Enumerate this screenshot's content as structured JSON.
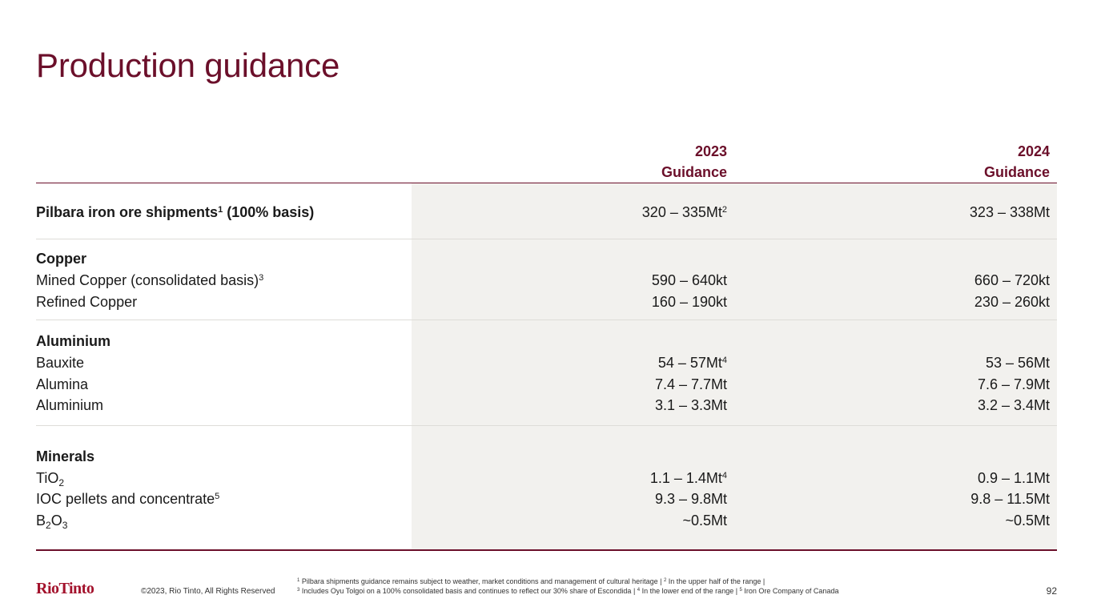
{
  "title": "Production guidance",
  "headers": {
    "col1_line1": "2023",
    "col1_line2": "Guidance",
    "col2_line1": "2024",
    "col2_line2": "Guidance"
  },
  "iron_ore": {
    "label": "Pilbara iron ore shipments",
    "label_sup": "1",
    "label_suffix": " (100% basis)",
    "v2023": "320 – 335Mt",
    "v2023_sup": "2",
    "v2024": "323 – 338Mt"
  },
  "copper": {
    "heading": "Copper",
    "mined_label": "Mined Copper (consolidated basis)",
    "mined_sup": "3",
    "mined_2023": "590 – 640kt",
    "mined_2024": "660 – 720kt",
    "refined_label": "Refined Copper",
    "refined_2023": "160 – 190kt",
    "refined_2024": "230 – 260kt"
  },
  "aluminium": {
    "heading": "Aluminium",
    "bauxite_label": "Bauxite",
    "bauxite_2023": "54 – 57Mt",
    "bauxite_2023_sup": "4",
    "bauxite_2024": "53 – 56Mt",
    "alumina_label": "Alumina",
    "alumina_2023": "7.4 – 7.7Mt",
    "alumina_2024": "7.6 – 7.9Mt",
    "aluminium_label": "Aluminium",
    "aluminium_2023": "3.1 – 3.3Mt",
    "aluminium_2024": "3.2 – 3.4Mt"
  },
  "minerals": {
    "heading": "Minerals",
    "tio2_label_main": "TiO",
    "tio2_label_sub": "2",
    "tio2_2023": "1.1 – 1.4Mt",
    "tio2_2023_sup": "4",
    "tio2_2024": "0.9 – 1.1Mt",
    "ioc_label": "IOC pellets and concentrate",
    "ioc_sup": "5",
    "ioc_2023": "9.3 – 9.8Mt",
    "ioc_2024": "9.8 – 11.5Mt",
    "b2o3_a": "B",
    "b2o3_sub1": "2",
    "b2o3_b": "O",
    "b2o3_sub2": "3",
    "b2o3_2023": "~0.5Mt",
    "b2o3_2024": "~0.5Mt"
  },
  "footer": {
    "logo": "RioTinto",
    "copyright": "©2023, Rio Tinto, All Rights Reserved",
    "fn1_sup": "1",
    "fn1": " Pilbara shipments guidance remains subject to weather, market conditions and management of cultural heritage | ",
    "fn2_sup": "2",
    "fn2": " In the upper half of the range |",
    "fn3_sup": "3",
    "fn3": " Includes Oyu Tolgoi on a 100% consolidated basis and continues to reflect our 30% share of Escondida | ",
    "fn4_sup": "4",
    "fn4": " In the lower end of the range | ",
    "fn5_sup": "5",
    "fn5": " Iron Ore Company of Canada",
    "page_number": "92"
  }
}
